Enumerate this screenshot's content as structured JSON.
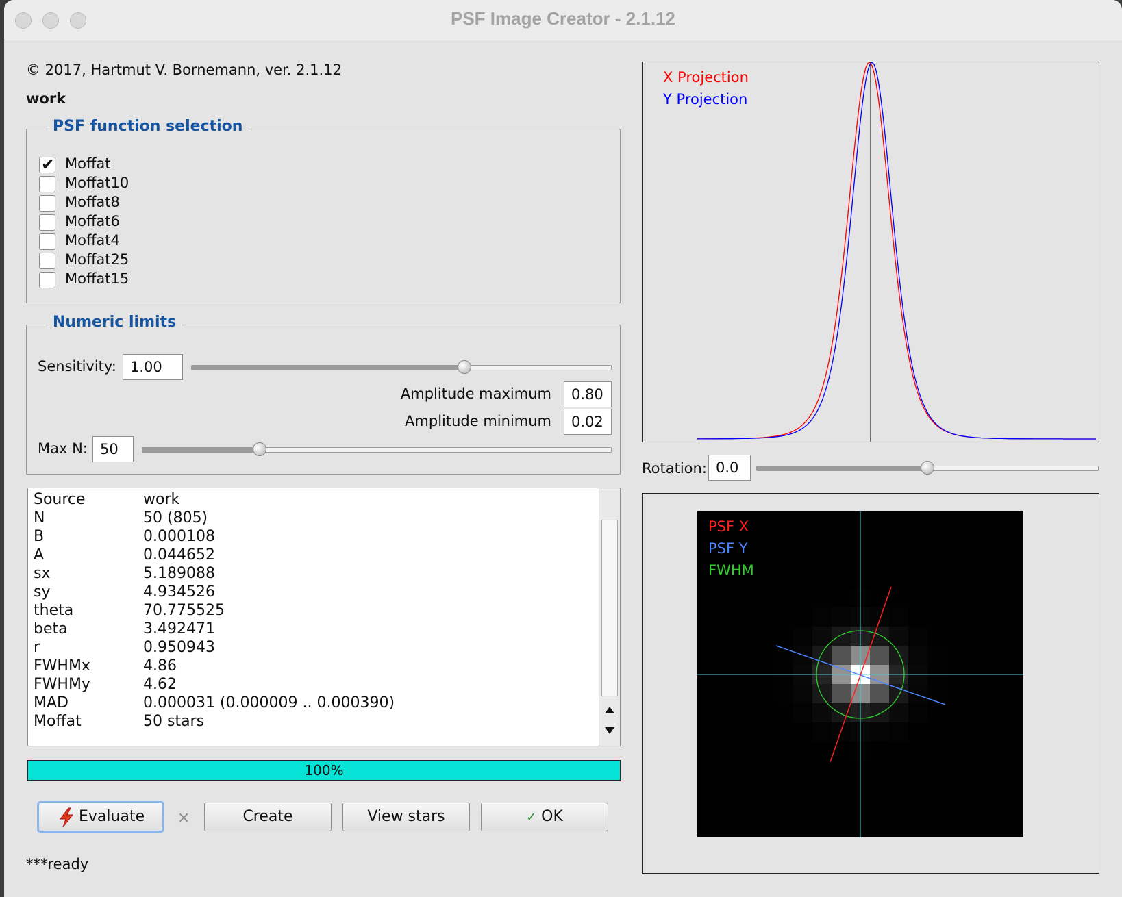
{
  "window": {
    "title": "PSF Image Creator - 2.1.12"
  },
  "header": {
    "copyright": "© 2017, Hartmut V. Bornemann, ver. 2.1.12",
    "source_name": "work"
  },
  "psf_selection": {
    "title": "PSF function selection",
    "options": [
      {
        "label": "Moffat",
        "checked": true
      },
      {
        "label": "Moffat10",
        "checked": false
      },
      {
        "label": "Moffat8",
        "checked": false
      },
      {
        "label": "Moffat6",
        "checked": false
      },
      {
        "label": "Moffat4",
        "checked": false
      },
      {
        "label": "Moffat25",
        "checked": false
      },
      {
        "label": "Moffat15",
        "checked": false
      }
    ]
  },
  "limits": {
    "title": "Numeric limits",
    "sensitivity_label": "Sensitivity:",
    "sensitivity_value": "1.00",
    "sensitivity_slider_fraction": 0.65,
    "amp_max_label": "Amplitude maximum",
    "amp_max_value": "0.80",
    "amp_min_label": "Amplitude minimum",
    "amp_min_value": "0.02",
    "maxn_label": "Max N:",
    "maxn_value": "50",
    "maxn_slider_fraction": 0.25
  },
  "results": [
    {
      "key": "Source",
      "value": "work"
    },
    {
      "key": "N",
      "value": "50 (805)"
    },
    {
      "key": "B",
      "value": "0.000108"
    },
    {
      "key": "A",
      "value": "0.044652"
    },
    {
      "key": "sx",
      "value": "5.189088"
    },
    {
      "key": "sy",
      "value": "4.934526"
    },
    {
      "key": "theta",
      "value": "70.775525"
    },
    {
      "key": "beta",
      "value": "3.492471"
    },
    {
      "key": "r",
      "value": "0.950943"
    },
    {
      "key": "FWHMx",
      "value": "4.86"
    },
    {
      "key": "FWHMy",
      "value": "4.62"
    },
    {
      "key": "MAD",
      "value": "0.000031 (0.000009 .. 0.000390)"
    },
    {
      "key": "Moffat",
      "value": "50 stars"
    }
  ],
  "progress": {
    "label": "100%",
    "fraction": 1.0
  },
  "buttons": {
    "evaluate": "Evaluate",
    "cancel_glyph": "×",
    "create": "Create",
    "view_stars": "View stars",
    "ok": "OK"
  },
  "status": "***ready",
  "projection_plot": {
    "legend_x": "X Projection",
    "legend_y": "Y Projection",
    "x_color": "#ff0000",
    "y_color": "#0000ff"
  },
  "rotation": {
    "label": "Rotation:",
    "value": "0.0",
    "slider_fraction": 0.5
  },
  "psf_image": {
    "legend_psf_x": "PSF X",
    "legend_psf_y": "PSF Y",
    "legend_fwhm": "FWHM",
    "psf_x_color": "#ff2020",
    "psf_y_color": "#4f86ff",
    "fwhm_color": "#2fcf2f",
    "crosshair_color": "#3fd6d6"
  }
}
